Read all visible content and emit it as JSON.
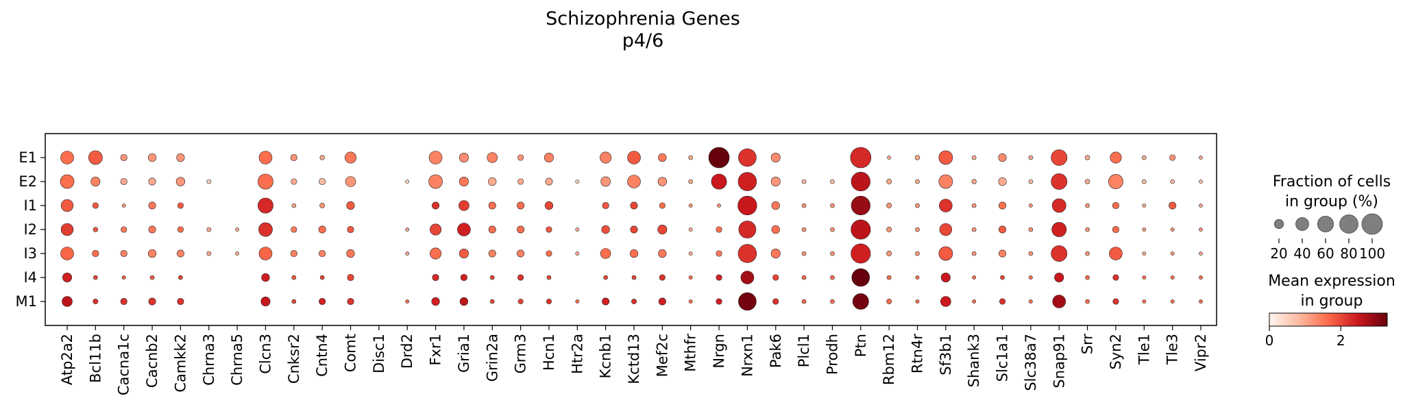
{
  "chart_data": {
    "type": "dotplot",
    "title": [
      "Schizophrenia Genes",
      "p4/6"
    ],
    "genes": [
      "Atp2a2",
      "Bcl11b",
      "Cacna1c",
      "Cacnb2",
      "Camkk2",
      "Chrna3",
      "Chrna5",
      "Clcn3",
      "Cnksr2",
      "Cntn4",
      "Comt",
      "Disc1",
      "Drd2",
      "Fxr1",
      "Gria1",
      "Grin2a",
      "Grm3",
      "Hcn1",
      "Htr2a",
      "Kcnb1",
      "Kctd13",
      "Mef2c",
      "Mthfr",
      "Nrgn",
      "Nrxn1",
      "Pak6",
      "Plcl1",
      "Prodh",
      "Ptn",
      "Rbm12",
      "Rtn4r",
      "Sf3b1",
      "Shank3",
      "Slc1a1",
      "Slc38a7",
      "Snap91",
      "Srr",
      "Syn2",
      "Tle1",
      "Tle3",
      "Vipr2"
    ],
    "groups": [
      "E1",
      "E2",
      "I1",
      "I2",
      "I3",
      "I4",
      "M1"
    ],
    "fraction_pct": [
      [
        40,
        45,
        10,
        15,
        15,
        0,
        0,
        40,
        10,
        5,
        30,
        0,
        0,
        40,
        20,
        25,
        8,
        20,
        0,
        30,
        40,
        15,
        4,
        100,
        75,
        20,
        0,
        0,
        100,
        3,
        5,
        45,
        4,
        15,
        4,
        60,
        5,
        30,
        4,
        8,
        3
      ],
      [
        45,
        20,
        10,
        12,
        18,
        4,
        0,
        55,
        8,
        10,
        25,
        0,
        3,
        45,
        20,
        15,
        8,
        12,
        3,
        22,
        40,
        18,
        4,
        55,
        80,
        20,
        4,
        4,
        85,
        6,
        4,
        45,
        5,
        15,
        4,
        60,
        5,
        50,
        4,
        4,
        3
      ],
      [
        35,
        8,
        3,
        12,
        8,
        0,
        0,
        55,
        4,
        6,
        15,
        0,
        0,
        12,
        25,
        12,
        12,
        15,
        0,
        10,
        12,
        8,
        3,
        3,
        85,
        15,
        4,
        4,
        85,
        6,
        4,
        40,
        4,
        12,
        3,
        45,
        4,
        10,
        3,
        12,
        3
      ],
      [
        35,
        5,
        8,
        12,
        8,
        4,
        3,
        45,
        8,
        12,
        10,
        0,
        3,
        30,
        40,
        12,
        12,
        8,
        3,
        15,
        12,
        20,
        3,
        8,
        70,
        15,
        4,
        4,
        90,
        6,
        4,
        35,
        4,
        12,
        4,
        50,
        4,
        10,
        3,
        3,
        3
      ],
      [
        40,
        10,
        10,
        15,
        12,
        4,
        3,
        40,
        10,
        10,
        15,
        0,
        3,
        30,
        20,
        12,
        12,
        8,
        3,
        25,
        15,
        15,
        3,
        8,
        80,
        20,
        4,
        4,
        90,
        6,
        4,
        45,
        4,
        12,
        4,
        60,
        4,
        40,
        3,
        3,
        3
      ],
      [
        20,
        4,
        3,
        4,
        4,
        0,
        0,
        15,
        4,
        4,
        10,
        0,
        0,
        10,
        10,
        4,
        8,
        4,
        0,
        4,
        4,
        8,
        3,
        8,
        40,
        8,
        4,
        4,
        75,
        4,
        3,
        20,
        3,
        4,
        3,
        20,
        4,
        8,
        3,
        3,
        3
      ],
      [
        25,
        6,
        10,
        12,
        10,
        0,
        0,
        20,
        4,
        10,
        10,
        0,
        3,
        15,
        15,
        4,
        6,
        6,
        3,
        12,
        6,
        12,
        3,
        8,
        75,
        8,
        4,
        4,
        60,
        6,
        3,
        25,
        3,
        8,
        3,
        40,
        4,
        8,
        3,
        3,
        3
      ]
    ],
    "mean_expression": [
      [
        1.6,
        1.8,
        1.2,
        1.2,
        1.2,
        0,
        0,
        1.6,
        1.2,
        1.0,
        1.5,
        0,
        0,
        1.4,
        1.3,
        1.4,
        1.2,
        1.4,
        0,
        1.4,
        1.8,
        1.5,
        1.0,
        3.3,
        2.2,
        1.3,
        0,
        0,
        2.3,
        1.0,
        1.0,
        1.8,
        1.0,
        1.3,
        1.0,
        2.0,
        1.0,
        1.6,
        1.0,
        1.2,
        1.0
      ],
      [
        1.6,
        1.4,
        1.0,
        1.0,
        1.2,
        0.5,
        0,
        1.6,
        1.0,
        0.8,
        1.2,
        0,
        0.5,
        1.4,
        1.5,
        1.0,
        1.0,
        1.0,
        0.5,
        1.2,
        1.4,
        1.2,
        1.0,
        2.5,
        2.4,
        1.2,
        0.8,
        0.8,
        2.6,
        1.0,
        1.0,
        1.4,
        1.0,
        1.0,
        0.8,
        2.2,
        1.0,
        1.4,
        0.8,
        0.8,
        0.8
      ],
      [
        1.8,
        1.8,
        1.2,
        1.5,
        1.8,
        0,
        0,
        2.3,
        1.0,
        1.2,
        1.8,
        0,
        0,
        2.2,
        2.1,
        1.6,
        1.6,
        2.0,
        0,
        1.8,
        2.0,
        1.6,
        1.2,
        1.2,
        2.5,
        1.5,
        1.2,
        1.2,
        2.9,
        1.2,
        1.2,
        2.2,
        1.2,
        1.6,
        1.2,
        2.3,
        1.2,
        1.6,
        1.0,
        1.8,
        1.0
      ],
      [
        2.1,
        1.8,
        1.5,
        1.5,
        1.6,
        1.0,
        1.0,
        2.2,
        1.5,
        1.6,
        1.8,
        0,
        1.0,
        2.0,
        2.4,
        1.6,
        1.6,
        1.8,
        1.0,
        1.9,
        2.0,
        2.0,
        1.0,
        1.6,
        2.3,
        1.6,
        1.2,
        1.2,
        2.6,
        1.2,
        1.2,
        2.0,
        1.2,
        1.8,
        1.2,
        2.4,
        1.2,
        1.6,
        1.2,
        1.2,
        1.2
      ],
      [
        1.7,
        1.6,
        1.4,
        1.4,
        1.4,
        1.0,
        1.0,
        1.7,
        1.4,
        1.4,
        1.5,
        0,
        1.0,
        1.6,
        1.8,
        1.4,
        1.4,
        1.6,
        1.0,
        1.6,
        1.6,
        1.5,
        1.0,
        1.5,
        2.2,
        1.5,
        1.2,
        1.2,
        2.4,
        1.2,
        1.2,
        1.8,
        1.2,
        1.4,
        1.2,
        2.2,
        1.2,
        1.8,
        1.0,
        1.2,
        1.0
      ],
      [
        2.4,
        2.0,
        1.8,
        1.8,
        2.0,
        0,
        0,
        2.4,
        1.8,
        2.0,
        2.0,
        0,
        0,
        2.3,
        2.4,
        2.0,
        2.2,
        2.0,
        0,
        2.0,
        2.0,
        2.2,
        1.6,
        2.4,
        2.8,
        2.0,
        1.6,
        1.6,
        3.4,
        1.6,
        1.6,
        2.5,
        1.6,
        2.0,
        1.6,
        2.5,
        1.6,
        2.2,
        1.6,
        1.6,
        1.6
      ],
      [
        2.6,
        2.2,
        2.2,
        2.2,
        2.2,
        0,
        0,
        2.5,
        2.0,
        2.4,
        2.2,
        0,
        1.6,
        2.4,
        2.6,
        2.0,
        2.0,
        2.2,
        1.6,
        2.4,
        2.2,
        2.4,
        1.6,
        2.4,
        3.2,
        2.2,
        1.6,
        1.6,
        3.2,
        1.6,
        1.6,
        2.5,
        1.6,
        2.2,
        1.6,
        2.8,
        1.6,
        2.2,
        1.6,
        1.6,
        1.6
      ]
    ],
    "size_legend": {
      "title": [
        "Fraction of cells",
        "in group (%)"
      ],
      "values": [
        20,
        40,
        60,
        80,
        100
      ],
      "labels": [
        "20",
        "40",
        "60",
        "80",
        "100"
      ]
    },
    "color_legend": {
      "title": [
        "Mean expression",
        "in group"
      ],
      "range": [
        0,
        3.3
      ],
      "ticks": [
        0,
        2
      ],
      "tick_labels": [
        "0",
        "2"
      ],
      "colormap": [
        "#fff5f0",
        "#fcbba1",
        "#fb6a4a",
        "#cb181d",
        "#67000d"
      ]
    }
  }
}
